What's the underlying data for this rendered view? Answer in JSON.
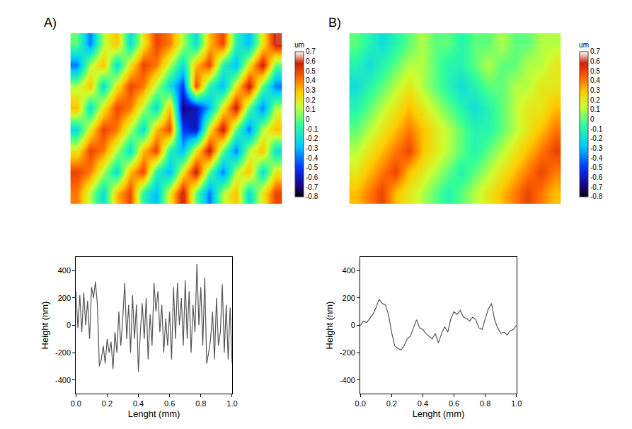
{
  "chart_data": [
    {
      "type": "heatmap",
      "title": "A)",
      "tick_labels": false,
      "colorbar": {
        "title": "um",
        "range": [
          -0.8,
          0.7
        ],
        "ticks": [
          0.7,
          0.6,
          0.5,
          0.4,
          0.3,
          0.2,
          0.1,
          0,
          -0.1,
          -0.2,
          -0.3,
          -0.4,
          -0.5,
          -0.6,
          -0.7,
          -0.8
        ]
      },
      "z": [
        [
          0.4,
          0.1,
          -0.2,
          0.3,
          0.5,
          -0.1,
          -0.3,
          0.2,
          0.6,
          0.0,
          -0.4,
          0.1,
          0.3,
          -0.2,
          0.2,
          0.5
        ],
        [
          0.5,
          0.4,
          0.1,
          -0.2,
          0.3,
          0.5,
          -0.1,
          -0.3,
          0.2,
          0.6,
          0.0,
          -0.4,
          0.1,
          0.3,
          -0.2,
          0.2
        ],
        [
          0.2,
          0.5,
          0.4,
          0.1,
          -0.2,
          0.3,
          0.5,
          -0.1,
          -0.3,
          0.2,
          0.6,
          0.0,
          -0.4,
          0.1,
          0.3,
          -0.2
        ],
        [
          -0.2,
          0.2,
          0.5,
          0.4,
          0.1,
          -0.2,
          0.3,
          0.5,
          -0.5,
          -0.6,
          0.2,
          0.6,
          0.0,
          -0.4,
          0.1,
          0.3
        ],
        [
          0.3,
          -0.2,
          0.2,
          0.5,
          0.4,
          0.1,
          -0.2,
          0.3,
          -0.7,
          -0.6,
          -0.3,
          0.2,
          0.6,
          0.0,
          -0.4,
          0.1
        ],
        [
          0.1,
          0.3,
          -0.2,
          0.2,
          0.5,
          0.4,
          0.1,
          -0.2,
          -0.5,
          0.5,
          -0.1,
          -0.3,
          0.2,
          0.6,
          0.0,
          -0.4
        ],
        [
          -0.4,
          0.1,
          0.3,
          -0.2,
          0.2,
          0.5,
          0.4,
          0.1,
          -0.2,
          0.3,
          0.5,
          -0.1,
          -0.3,
          0.2,
          0.6,
          0.0
        ],
        [
          0.0,
          -0.4,
          0.1,
          0.3,
          -0.2,
          0.2,
          0.5,
          0.4,
          0.1,
          -0.2,
          0.3,
          0.5,
          -0.1,
          -0.3,
          0.2,
          0.6
        ]
      ]
    },
    {
      "type": "heatmap",
      "title": "B)",
      "tick_labels": false,
      "colorbar": {
        "title": "um",
        "range": [
          -0.8,
          0.7
        ],
        "ticks": [
          0.7,
          0.6,
          0.5,
          0.4,
          0.3,
          0.2,
          0.1,
          0,
          -0.1,
          -0.2,
          -0.3,
          -0.4,
          -0.5,
          -0.6,
          -0.7,
          -0.8
        ]
      },
      "z": [
        [
          0.3,
          0.4,
          0.5,
          0.3,
          0.2,
          0.1,
          0.0,
          -0.1,
          0.0,
          0.1,
          0.2,
          0.3,
          0.4,
          0.5,
          0.4,
          0.3
        ],
        [
          0.2,
          0.3,
          0.4,
          0.5,
          0.3,
          0.2,
          0.1,
          0.0,
          -0.1,
          0.0,
          0.1,
          0.2,
          0.3,
          0.4,
          0.5,
          0.4
        ],
        [
          0.1,
          0.2,
          0.3,
          0.4,
          0.5,
          0.3,
          0.2,
          0.1,
          0.0,
          -0.1,
          0.0,
          0.1,
          0.2,
          0.3,
          0.4,
          0.5
        ],
        [
          0.0,
          0.1,
          0.2,
          0.3,
          0.4,
          0.3,
          0.2,
          0.1,
          0.0,
          -0.1,
          -0.1,
          0.0,
          0.1,
          0.2,
          0.3,
          0.4
        ],
        [
          -0.1,
          0.0,
          0.1,
          0.2,
          0.3,
          0.2,
          0.1,
          0.0,
          -0.1,
          -0.2,
          -0.1,
          0.0,
          0.1,
          0.2,
          0.2,
          0.3
        ],
        [
          -0.2,
          -0.1,
          0.0,
          0.1,
          0.2,
          0.1,
          0.0,
          -0.1,
          -0.2,
          -0.1,
          0.0,
          0.0,
          0.1,
          0.1,
          0.2,
          0.2
        ],
        [
          -0.1,
          -0.2,
          -0.1,
          0.0,
          0.1,
          0.1,
          0.0,
          -0.1,
          -0.1,
          0.0,
          0.1,
          0.0,
          0.0,
          0.1,
          0.1,
          0.2
        ],
        [
          0.0,
          -0.1,
          -0.2,
          -0.1,
          0.0,
          0.1,
          0.0,
          0.0,
          -0.1,
          0.0,
          0.0,
          0.1,
          0.0,
          0.0,
          0.1,
          0.1
        ]
      ]
    },
    {
      "type": "line",
      "x_label": "Lenght (mm)",
      "y_label": "Height (nm)",
      "color": "#555555",
      "xlim": [
        0,
        1
      ],
      "ylim": [
        -500,
        500
      ],
      "xticks": [
        {
          "value": 0,
          "label": "0.0"
        },
        0.2,
        0.4,
        0.6,
        0.8,
        {
          "value": 1,
          "label": "1.0"
        }
      ],
      "yticks": [
        -400,
        -200,
        0,
        200,
        400
      ],
      "x": [
        0,
        0.0125,
        0.025,
        0.0375,
        0.05,
        0.0625,
        0.075,
        0.0875,
        0.1,
        0.1125,
        0.125,
        0.1375,
        0.15,
        0.1625,
        0.175,
        0.1875,
        0.2,
        0.2125,
        0.225,
        0.2375,
        0.25,
        0.2625,
        0.275,
        0.2875,
        0.3,
        0.3125,
        0.325,
        0.3375,
        0.35,
        0.3625,
        0.375,
        0.3875,
        0.4,
        0.4125,
        0.425,
        0.4375,
        0.45,
        0.4625,
        0.475,
        0.4875,
        0.5,
        0.5125,
        0.525,
        0.5375,
        0.55,
        0.5625,
        0.575,
        0.5875,
        0.6,
        0.6125,
        0.625,
        0.6375,
        0.65,
        0.6625,
        0.675,
        0.6875,
        0.7,
        0.7125,
        0.725,
        0.7375,
        0.75,
        0.7625,
        0.775,
        0.7875,
        0.8,
        0.8125,
        0.825,
        0.8375,
        0.85,
        0.8625,
        0.875,
        0.8875,
        0.9,
        0.9125,
        0.925,
        0.9375,
        0.95,
        0.9625,
        0.975,
        0.9875,
        1
      ],
      "values": [
        250,
        -20,
        220,
        -50,
        240,
        0,
        180,
        -100,
        280,
        200,
        320,
        150,
        -300,
        -250,
        -150,
        -280,
        -100,
        -200,
        -120,
        -320,
        -50,
        -200,
        100,
        -150,
        50,
        310,
        -100,
        150,
        -200,
        220,
        -100,
        150,
        -340,
        -50,
        160,
        -100,
        200,
        -250,
        80,
        -150,
        310,
        100,
        250,
        -50,
        150,
        -200,
        50,
        -150,
        100,
        -250,
        280,
        -100,
        310,
        0,
        200,
        -150,
        330,
        -100,
        250,
        -200,
        150,
        -50,
        450,
        0,
        280,
        -150,
        350,
        -280,
        -200,
        -100,
        100,
        -250,
        200,
        -150,
        -50,
        300,
        -200,
        150,
        -250,
        130,
        -280
      ]
    },
    {
      "type": "line",
      "x_label": "Lenght (mm)",
      "y_label": "Height (nm)",
      "color": "#555555",
      "xlim": [
        0,
        1
      ],
      "ylim": [
        -500,
        500
      ],
      "xticks": [
        {
          "value": 0,
          "label": "0.0"
        },
        0.2,
        0.4,
        0.6,
        0.8,
        {
          "value": 1,
          "label": "1.0"
        }
      ],
      "yticks": [
        -400,
        -200,
        0,
        200,
        400
      ],
      "x": [
        0,
        0.02,
        0.04,
        0.06,
        0.08,
        0.1,
        0.12,
        0.14,
        0.16,
        0.18,
        0.2,
        0.22,
        0.24,
        0.26,
        0.28,
        0.3,
        0.32,
        0.34,
        0.36,
        0.38,
        0.4,
        0.42,
        0.44,
        0.46,
        0.48,
        0.5,
        0.52,
        0.54,
        0.56,
        0.58,
        0.6,
        0.62,
        0.64,
        0.66,
        0.68,
        0.7,
        0.72,
        0.74,
        0.76,
        0.78,
        0.8,
        0.82,
        0.84,
        0.86,
        0.88,
        0.9,
        0.92,
        0.94,
        0.96,
        0.98,
        1
      ],
      "values": [
        0,
        30,
        20,
        50,
        80,
        130,
        190,
        160,
        150,
        80,
        -50,
        -150,
        -170,
        -180,
        -150,
        -100,
        -80,
        -20,
        40,
        -20,
        -30,
        -60,
        -80,
        -100,
        -60,
        -130,
        -60,
        -10,
        -50,
        50,
        100,
        80,
        110,
        60,
        50,
        30,
        60,
        40,
        -20,
        -30,
        50,
        120,
        160,
        40,
        -20,
        -60,
        -50,
        -70,
        -40,
        -30,
        0
      ]
    }
  ]
}
